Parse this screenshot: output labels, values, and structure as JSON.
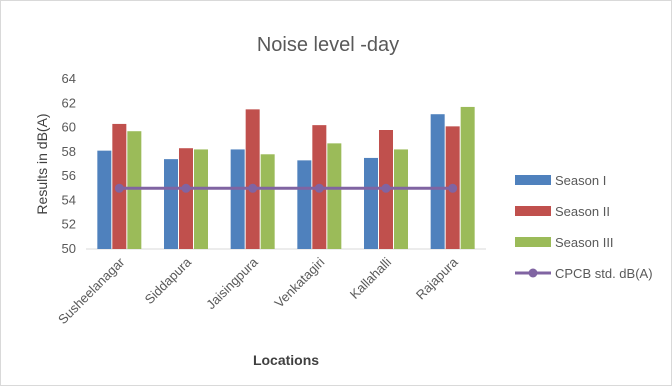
{
  "chart_data": {
    "type": "bar",
    "title": "Noise level -day",
    "xlabel": "Locations",
    "ylabel": "Results in dB(A)",
    "ylim": [
      50,
      64
    ],
    "yticks": [
      50,
      52,
      54,
      56,
      58,
      60,
      62,
      64
    ],
    "grid": false,
    "legend_position": "right",
    "categories": [
      "Susheelanagar",
      "Siddapura",
      "Jaisingpura",
      "Venkatagiri",
      "Kallahalli",
      "Rajapura"
    ],
    "series": [
      {
        "name": "Season I",
        "kind": "bar",
        "color": "#4f81bd",
        "values": [
          58.1,
          57.4,
          58.2,
          57.3,
          57.5,
          61.1
        ]
      },
      {
        "name": "Season II",
        "kind": "bar",
        "color": "#c0504d",
        "values": [
          60.3,
          58.3,
          61.5,
          60.2,
          59.8,
          60.1
        ]
      },
      {
        "name": "Season III",
        "kind": "bar",
        "color": "#9bbb59",
        "values": [
          59.7,
          58.2,
          57.8,
          58.7,
          58.2,
          61.7
        ]
      },
      {
        "name": "CPCB std. dB(A)",
        "kind": "line",
        "color": "#8064a2",
        "values": [
          55,
          55,
          55,
          55,
          55,
          55
        ]
      }
    ]
  }
}
